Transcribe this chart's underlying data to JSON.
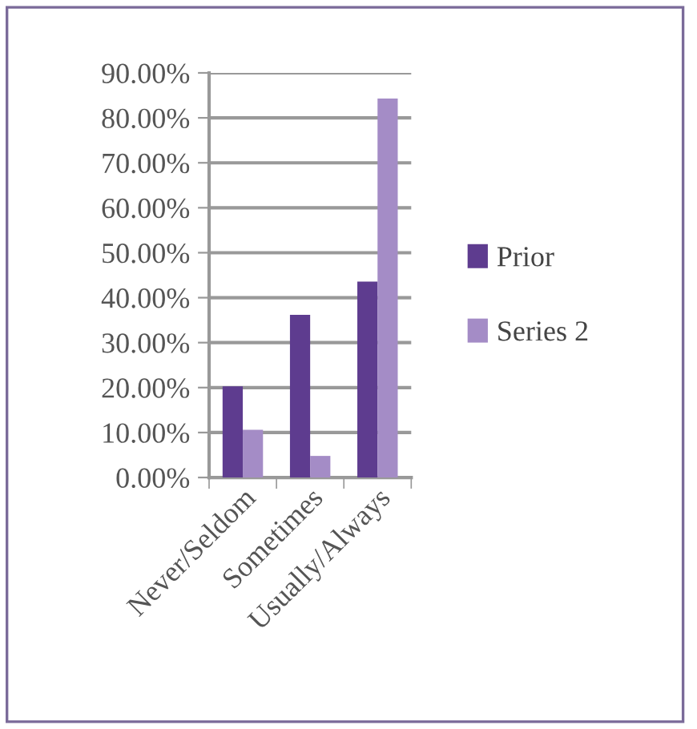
{
  "chart_data": {
    "type": "bar",
    "categories": [
      "Never/Seldom",
      "Sometimes",
      "Usually/Always"
    ],
    "series": [
      {
        "name": "Prior",
        "color": "#5e3c8f",
        "values": [
          20.3,
          36.2,
          43.6
        ]
      },
      {
        "name": "Series 2",
        "color": "#a48cc6",
        "values": [
          10.6,
          4.8,
          84.3
        ]
      }
    ],
    "ylim": [
      0,
      90
    ],
    "yticks": [
      {
        "value": 0,
        "label": "0.00%"
      },
      {
        "value": 10,
        "label": "10.00%"
      },
      {
        "value": 20,
        "label": "20.00%"
      },
      {
        "value": 30,
        "label": "30.00%"
      },
      {
        "value": 40,
        "label": "40.00%"
      },
      {
        "value": 50,
        "label": "50.00%"
      },
      {
        "value": 60,
        "label": "60.00%"
      },
      {
        "value": 70,
        "label": "70.00%"
      },
      {
        "value": 80,
        "label": "80.00%"
      },
      {
        "value": 90,
        "label": "90.00%"
      }
    ],
    "grid": "y",
    "legend": "right"
  }
}
